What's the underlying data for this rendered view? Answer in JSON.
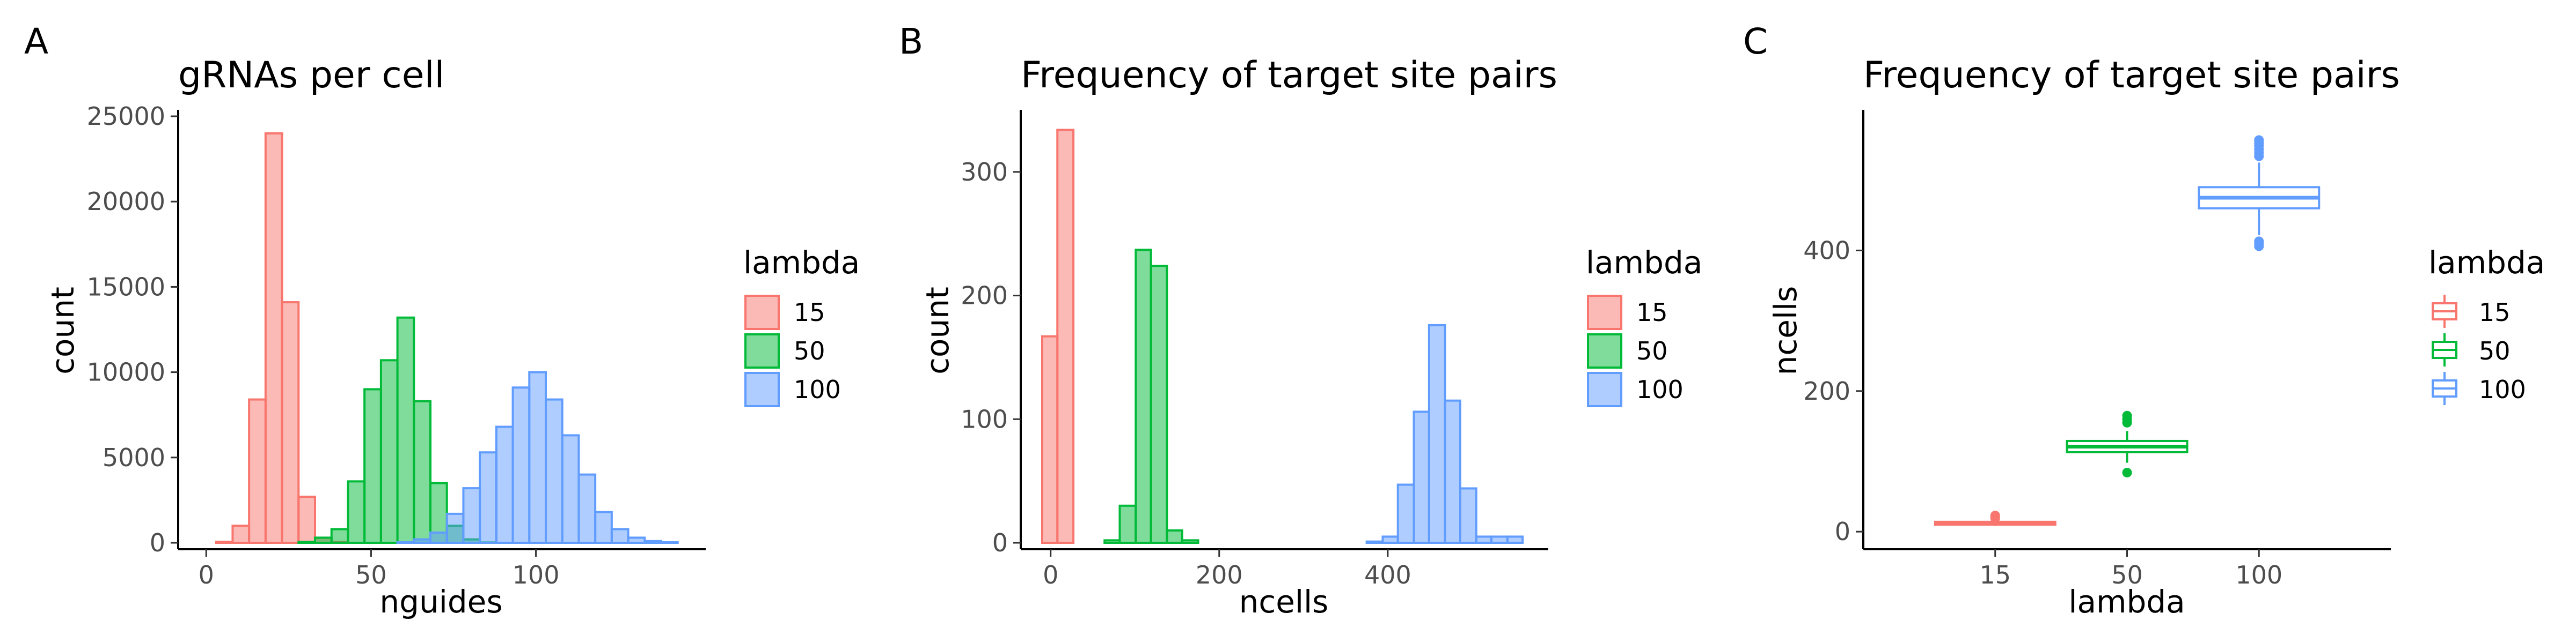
{
  "colors": {
    "c15": "#F8766D",
    "c50": "#00BA38",
    "c100": "#619CFF"
  },
  "chart_data": [
    {
      "panel": "A",
      "type": "bar",
      "title": "gRNAs per cell",
      "xlabel": "nguides",
      "ylabel": "count",
      "xlim": [
        -2,
        145
      ],
      "ylim": [
        0,
        25000
      ],
      "xticks": [
        0,
        50,
        100
      ],
      "yticks": [
        0,
        5000,
        10000,
        15000,
        20000,
        25000
      ],
      "bin_width": 5,
      "legend": {
        "title": "lambda",
        "entries": [
          "15",
          "50",
          "100"
        ]
      },
      "series": [
        {
          "name": "15",
          "color_key": "c15",
          "bins": [
            [
              -2,
              3,
              0
            ],
            [
              3,
              8,
              60
            ],
            [
              8,
              13,
              1000
            ],
            [
              13,
              18,
              8400
            ],
            [
              18,
              23,
              24000
            ],
            [
              23,
              28,
              14100
            ],
            [
              28,
              33,
              2700
            ],
            [
              33,
              38,
              300
            ],
            [
              38,
              43,
              50
            ],
            [
              43,
              48,
              0
            ]
          ]
        },
        {
          "name": "50",
          "color_key": "c50",
          "bins": [
            [
              -2,
              3,
              0
            ],
            [
              3,
              8,
              0
            ],
            [
              8,
              13,
              0
            ],
            [
              13,
              18,
              0
            ],
            [
              18,
              23,
              0
            ],
            [
              23,
              28,
              0
            ],
            [
              28,
              33,
              50
            ],
            [
              33,
              38,
              300
            ],
            [
              38,
              43,
              800
            ],
            [
              43,
              48,
              3600
            ],
            [
              48,
              53,
              9000
            ],
            [
              53,
              58,
              10700
            ],
            [
              58,
              63,
              13200
            ],
            [
              63,
              68,
              8300
            ],
            [
              68,
              73,
              3500
            ],
            [
              73,
              78,
              1000
            ],
            [
              78,
              83,
              200
            ],
            [
              83,
              88,
              20
            ],
            [
              88,
              93,
              0
            ]
          ]
        },
        {
          "name": "100",
          "color_key": "c100",
          "bins": [
            [
              -2,
              3,
              0
            ],
            [
              3,
              8,
              0
            ],
            [
              8,
              13,
              0
            ],
            [
              13,
              18,
              0
            ],
            [
              18,
              23,
              0
            ],
            [
              23,
              28,
              0
            ],
            [
              28,
              33,
              0
            ],
            [
              33,
              38,
              0
            ],
            [
              38,
              43,
              0
            ],
            [
              43,
              48,
              0
            ],
            [
              48,
              53,
              0
            ],
            [
              53,
              58,
              0
            ],
            [
              58,
              63,
              30
            ],
            [
              63,
              68,
              200
            ],
            [
              68,
              73,
              600
            ],
            [
              73,
              78,
              1700
            ],
            [
              78,
              83,
              3200
            ],
            [
              83,
              88,
              5300
            ],
            [
              88,
              93,
              6800
            ],
            [
              93,
              98,
              9100
            ],
            [
              98,
              103,
              10000
            ],
            [
              103,
              108,
              8400
            ],
            [
              108,
              113,
              6300
            ],
            [
              113,
              118,
              4000
            ],
            [
              118,
              123,
              1800
            ],
            [
              123,
              128,
              800
            ],
            [
              128,
              133,
              300
            ],
            [
              133,
              138,
              100
            ],
            [
              138,
              143,
              30
            ]
          ]
        }
      ]
    },
    {
      "panel": "B",
      "type": "bar",
      "title": "Frequency of target site pairs",
      "xlabel": "ncells",
      "ylabel": "count",
      "xlim": [
        -10,
        565
      ],
      "ylim": [
        0,
        345
      ],
      "xticks": [
        0,
        200,
        400
      ],
      "yticks": [
        0,
        100,
        200,
        300
      ],
      "legend": {
        "title": "lambda",
        "entries": [
          "15",
          "50",
          "100"
        ]
      },
      "series": [
        {
          "name": "15",
          "color_key": "c15",
          "bins": [
            [
              -10,
              8,
              167
            ],
            [
              8,
              27,
              334
            ],
            [
              27,
              45,
              0
            ]
          ]
        },
        {
          "name": "50",
          "color_key": "c50",
          "bins": [
            [
              45,
              64,
              0
            ],
            [
              64,
              82,
              2
            ],
            [
              82,
              101,
              30
            ],
            [
              101,
              119,
              237
            ],
            [
              119,
              138,
              224
            ],
            [
              138,
              156,
              10
            ],
            [
              156,
              175,
              2
            ],
            [
              175,
              193,
              0
            ]
          ]
        },
        {
          "name": "100",
          "color_key": "c100",
          "bins": [
            [
              175,
              375,
              0
            ],
            [
              375,
              394,
              1
            ],
            [
              394,
              412,
              5
            ],
            [
              412,
              431,
              47
            ],
            [
              431,
              449,
              106
            ],
            [
              449,
              468,
              176
            ],
            [
              468,
              486,
              115
            ],
            [
              486,
              505,
              44
            ],
            [
              505,
              523,
              5
            ],
            [
              523,
              542,
              5
            ],
            [
              542,
              560,
              5
            ]
          ]
        }
      ]
    },
    {
      "panel": "C",
      "type": "box",
      "title": "Frequency of target site pairs",
      "xlabel": "lambda",
      "ylabel": "ncells",
      "categories": [
        "15",
        "50",
        "100"
      ],
      "ylim": [
        -25,
        600
      ],
      "yticks": [
        0,
        200,
        400
      ],
      "legend": {
        "title": "lambda",
        "entries": [
          "15",
          "50",
          "100"
        ]
      },
      "boxes": [
        {
          "category": "15",
          "color_key": "c15",
          "min": 8,
          "q1": 10,
          "median": 12,
          "q3": 14,
          "max": 16,
          "outliers": [
            19,
            21,
            23
          ]
        },
        {
          "category": "50",
          "color_key": "c50",
          "min": 98,
          "q1": 113,
          "median": 121,
          "q3": 129,
          "max": 143,
          "outliers": [
            84,
            155,
            160,
            165
          ]
        },
        {
          "category": "100",
          "color_key": "c100",
          "min": 422,
          "q1": 460,
          "median": 475,
          "q3": 490,
          "max": 525,
          "outliers": [
            406,
            410,
            413,
            534,
            539,
            544,
            549,
            553,
            557
          ]
        }
      ]
    }
  ]
}
